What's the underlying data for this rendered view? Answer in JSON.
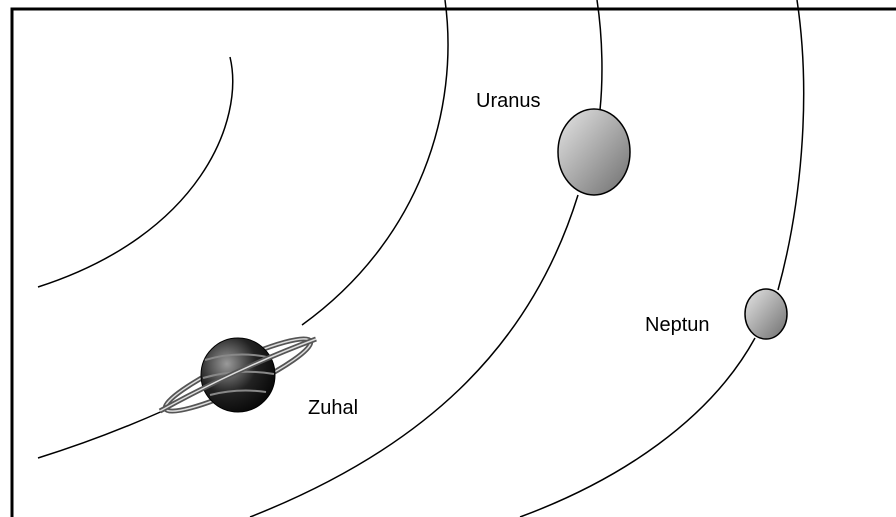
{
  "planets": [
    {
      "label": "Uranus"
    },
    {
      "label": "Neptun"
    },
    {
      "label": "Zuhal"
    }
  ]
}
